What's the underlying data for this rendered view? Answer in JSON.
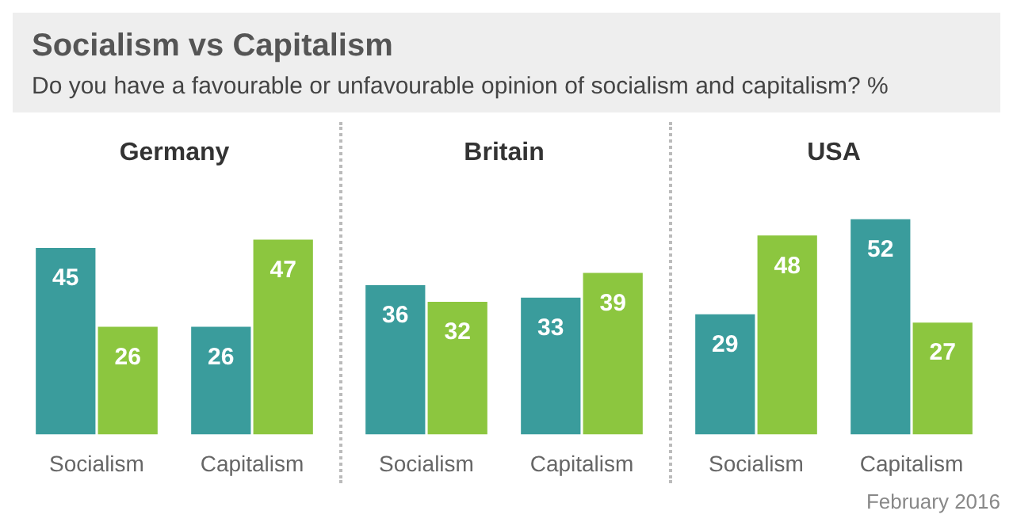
{
  "chart_data": [
    {
      "type": "bar",
      "title": "Germany",
      "categories": [
        "Socialism",
        "Capitalism"
      ],
      "annotations": [
        "Socialism vs Capitalism",
        "Do you have a favourable or unfavourable opinion of socialism and capitalism? %"
      ],
      "data_labels": true,
      "series": [
        {
          "color": "#3a9c9c",
          "values": [
            45,
            26
          ]
        },
        {
          "color": "#8cc63f",
          "values": [
            26,
            47
          ]
        }
      ]
    },
    {
      "type": "bar",
      "title": "Britain",
      "categories": [
        "Socialism",
        "Capitalism"
      ],
      "data_labels": true,
      "series": [
        {
          "color": "#3a9c9c",
          "values": [
            36,
            33
          ]
        },
        {
          "color": "#8cc63f",
          "values": [
            32,
            39
          ]
        }
      ]
    },
    {
      "type": "bar",
      "title": "USA",
      "categories": [
        "Socialism",
        "Capitalism"
      ],
      "annotations": [
        "February 2016"
      ],
      "data_labels": true,
      "series": [
        {
          "color": "#3a9c9c",
          "values": [
            29,
            52
          ]
        },
        {
          "color": "#8cc63f",
          "values": [
            48,
            27
          ]
        }
      ]
    }
  ]
}
